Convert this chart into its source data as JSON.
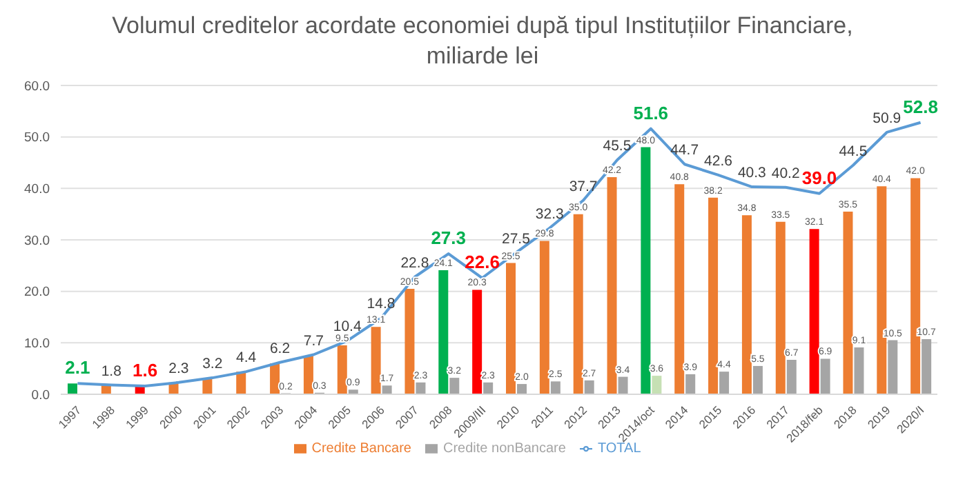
{
  "chart_data": {
    "type": "bar",
    "title": "Volumul creditelor acordate economiei după tipul Instituțiilor Financiare, miliarde lei",
    "categories": [
      "1997",
      "1998",
      "1999",
      "2000",
      "2001",
      "2002",
      "2003",
      "2004",
      "2005",
      "2006",
      "2007",
      "2008",
      "2009/III",
      "2010",
      "2011",
      "2012",
      "2013",
      "2014/oct",
      "2014",
      "2015",
      "2016",
      "2017",
      "2018/feb",
      "2018",
      "2019",
      "2020/I"
    ],
    "series": [
      {
        "name": "Credite Bancare",
        "color": "#ed7d31",
        "colors": [
          "#00b050",
          "#ed7d31",
          "#ff0000",
          "#ed7d31",
          "#ed7d31",
          "#ed7d31",
          "#ed7d31",
          "#ed7d31",
          "#ed7d31",
          "#ed7d31",
          "#ed7d31",
          "#00b050",
          "#ff0000",
          "#ed7d31",
          "#ed7d31",
          "#ed7d31",
          "#ed7d31",
          "#00b050",
          "#ed7d31",
          "#ed7d31",
          "#ed7d31",
          "#ed7d31",
          "#ff0000",
          "#ed7d31",
          "#ed7d31",
          "#ed7d31"
        ],
        "values": [
          2.1,
          1.8,
          1.6,
          2.3,
          3.2,
          4.4,
          6.0,
          7.4,
          9.5,
          13.1,
          20.5,
          24.1,
          20.3,
          25.5,
          29.8,
          35.0,
          42.2,
          48.0,
          40.8,
          38.2,
          34.8,
          33.5,
          32.1,
          35.5,
          40.4,
          42.0
        ],
        "value_labels": [
          null,
          null,
          null,
          null,
          null,
          null,
          null,
          null,
          "9.5",
          "13.1",
          "20.5",
          "24.1",
          "20.3",
          "25.5",
          "29.8",
          "35.0",
          "42.2",
          "48.0",
          "40.8",
          "38.2",
          "34.8",
          "33.5",
          "32.1",
          "35.5",
          "40.4",
          "42.0"
        ]
      },
      {
        "name": "Credite nonBancare",
        "color": "#a5a5a5",
        "colors": [
          "#a5a5a5",
          "#a5a5a5",
          "#a5a5a5",
          "#a5a5a5",
          "#a5a5a5",
          "#a5a5a5",
          "#a5a5a5",
          "#a5a5a5",
          "#a5a5a5",
          "#a5a5a5",
          "#a5a5a5",
          "#a5a5a5",
          "#a5a5a5",
          "#a5a5a5",
          "#a5a5a5",
          "#a5a5a5",
          "#a5a5a5",
          "#c6e0b4",
          "#a5a5a5",
          "#a5a5a5",
          "#a5a5a5",
          "#a5a5a5",
          "#a5a5a5",
          "#a5a5a5",
          "#a5a5a5",
          "#a5a5a5"
        ],
        "values": [
          null,
          null,
          null,
          null,
          null,
          null,
          0.2,
          0.3,
          0.9,
          1.7,
          2.3,
          3.2,
          2.3,
          2.0,
          2.5,
          2.7,
          3.4,
          3.6,
          3.9,
          4.4,
          5.5,
          6.7,
          6.9,
          9.1,
          10.5,
          10.7
        ],
        "value_labels": [
          null,
          null,
          null,
          null,
          null,
          null,
          "0.2",
          "0.3",
          "0.9",
          "1.7",
          "2.3",
          "3.2",
          "2.3",
          "2.0",
          "2.5",
          "2.7",
          "3.4",
          "3.6",
          "3.9",
          "4.4",
          "5.5",
          "6.7",
          "6.9",
          "9.1",
          "10.5",
          "10.7"
        ]
      },
      {
        "name": "TOTAL",
        "type": "line",
        "color": "#5b9bd5",
        "colors": [
          "#00b050",
          "#404040",
          "#ff0000",
          "#404040",
          "#404040",
          "#404040",
          "#404040",
          "#404040",
          "#404040",
          "#404040",
          "#404040",
          "#00b050",
          "#ff0000",
          "#404040",
          "#404040",
          "#404040",
          "#404040",
          "#00b050",
          "#404040",
          "#404040",
          "#404040",
          "#404040",
          "#ff0000",
          "#404040",
          "#404040",
          "#00b050"
        ],
        "values": [
          2.1,
          1.8,
          1.6,
          2.3,
          3.2,
          4.4,
          6.2,
          7.7,
          10.4,
          14.8,
          22.8,
          27.3,
          22.6,
          27.5,
          32.3,
          37.7,
          45.5,
          51.6,
          44.7,
          42.6,
          40.3,
          40.2,
          39.0,
          44.5,
          50.9,
          52.8
        ],
        "value_labels": [
          "2.1",
          "1.8",
          "1.6",
          "2.3",
          "3.2",
          "4.4",
          "6.2",
          "7.7",
          "10.4",
          "14.8",
          "22.8",
          "27.3",
          "22.6",
          "27.5",
          "32.3",
          "37.7",
          "45.5",
          "51.6",
          "44.7",
          "42.6",
          "40.3",
          "40.2",
          "39.0",
          "44.5",
          "50.9",
          "52.8"
        ]
      }
    ],
    "ylim": [
      0,
      60
    ],
    "yticks": [
      {
        "value": 0,
        "label": "0.0"
      },
      {
        "value": 10,
        "label": "10.0"
      },
      {
        "value": 20,
        "label": "20.0"
      },
      {
        "value": 30,
        "label": "30.0"
      },
      {
        "value": 40,
        "label": "40.0"
      },
      {
        "value": 50,
        "label": "50.0"
      },
      {
        "value": 60,
        "label": "60.0"
      }
    ],
    "grid": "y",
    "legend": "bottom",
    "marker": "none",
    "line_style": "solid"
  }
}
